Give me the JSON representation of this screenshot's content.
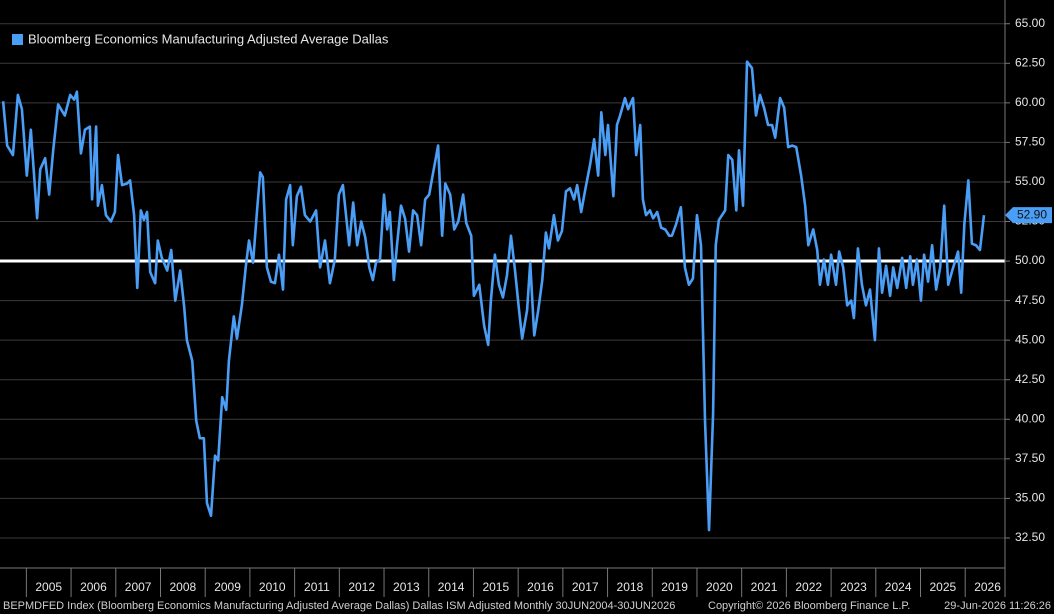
{
  "chart_data": {
    "type": "line",
    "legend": "top-left",
    "reference_line": 50,
    "footer": {
      "source": "BEPMDFED Index (Bloomberg Economics Manufacturing Adjusted Average Dallas) Dallas ISM Adjusted Monthly 30JUN2004-30JUN2026",
      "copyright": "Copyright© 2026 Bloomberg Finance L.P.",
      "timestamp": "29-Jun-2026 11:26:26"
    },
    "last_value": {
      "value": 52.9,
      "label": "52.90"
    },
    "xlim": [
      2004.41,
      2026.89
    ],
    "xticks": [
      2005,
      2006,
      2007,
      2008,
      2009,
      2010,
      2011,
      2012,
      2013,
      2014,
      2015,
      2016,
      2017,
      2018,
      2019,
      2020,
      2021,
      2022,
      2023,
      2024,
      2025,
      2026
    ],
    "ylim": [
      30.6,
      66.5
    ],
    "yticks": [
      {
        "value": 32.5,
        "label": "32.50"
      },
      {
        "value": 35,
        "label": "35.00"
      },
      {
        "value": 37.5,
        "label": "37.50"
      },
      {
        "value": 40,
        "label": "40.00"
      },
      {
        "value": 42.5,
        "label": "42.50"
      },
      {
        "value": 45,
        "label": "45.00"
      },
      {
        "value": 47.5,
        "label": "47.50"
      },
      {
        "value": 50,
        "label": "50.00"
      },
      {
        "value": 52.5,
        "label": "52.50"
      },
      {
        "value": 55,
        "label": "55.00"
      },
      {
        "value": 57.5,
        "label": "57.50"
      },
      {
        "value": 60,
        "label": "60.00"
      },
      {
        "value": 62.5,
        "label": "62.50"
      },
      {
        "value": 65,
        "label": "65.00"
      }
    ],
    "grid": true,
    "x": [
      2004.48,
      2004.57,
      2004.7,
      2004.81,
      2004.9,
      2005.01,
      2005.1,
      2005.24,
      2005.31,
      2005.42,
      2005.51,
      2005.6,
      2005.71,
      2005.86,
      2005.98,
      2006.07,
      2006.13,
      2006.22,
      2006.31,
      2006.42,
      2006.47,
      2006.56,
      2006.6,
      2006.69,
      2006.78,
      2006.89,
      2006.98,
      2007.05,
      2007.14,
      2007.25,
      2007.32,
      2007.41,
      2007.48,
      2007.56,
      2007.63,
      2007.7,
      2007.77,
      2007.88,
      2007.94,
      2008.03,
      2008.15,
      2008.24,
      2008.33,
      2008.44,
      2008.53,
      2008.59,
      2008.71,
      2008.8,
      2008.88,
      2008.97,
      2009.04,
      2009.13,
      2009.22,
      2009.29,
      2009.38,
      2009.47,
      2009.53,
      2009.64,
      2009.71,
      2009.82,
      2009.91,
      2009.98,
      2010.07,
      2010.16,
      2010.23,
      2010.29,
      2010.38,
      2010.47,
      2010.56,
      2010.65,
      2010.74,
      2010.81,
      2010.9,
      2010.96,
      2011.05,
      2011.14,
      2011.23,
      2011.35,
      2011.48,
      2011.57,
      2011.68,
      2011.79,
      2011.9,
      2011.99,
      2012.08,
      2012.22,
      2012.31,
      2012.4,
      2012.49,
      2012.58,
      2012.67,
      2012.75,
      2012.82,
      2012.91,
      2013.0,
      2013.07,
      2013.13,
      2013.22,
      2013.29,
      2013.38,
      2013.47,
      2013.56,
      2013.65,
      2013.74,
      2013.83,
      2013.92,
      2014.01,
      2014.08,
      2014.21,
      2014.3,
      2014.37,
      2014.48,
      2014.57,
      2014.66,
      2014.77,
      2014.84,
      2014.95,
      2015.01,
      2015.13,
      2015.24,
      2015.33,
      2015.39,
      2015.48,
      2015.57,
      2015.66,
      2015.75,
      2015.84,
      2015.93,
      2016.02,
      2016.09,
      2016.2,
      2016.27,
      2016.36,
      2016.45,
      2016.54,
      2016.62,
      2016.69,
      2016.8,
      2016.89,
      2016.98,
      2017.07,
      2017.16,
      2017.25,
      2017.32,
      2017.41,
      2017.5,
      2017.61,
      2017.7,
      2017.79,
      2017.86,
      2017.95,
      2018.01,
      2018.13,
      2018.21,
      2018.28,
      2018.39,
      2018.46,
      2018.57,
      2018.64,
      2018.73,
      2018.79,
      2018.86,
      2018.95,
      2019.02,
      2019.11,
      2019.2,
      2019.29,
      2019.38,
      2019.44,
      2019.53,
      2019.64,
      2019.73,
      2019.82,
      2019.91,
      2020.0,
      2020.09,
      2020.18,
      2020.27,
      2020.36,
      2020.42,
      2020.49,
      2020.63,
      2020.7,
      2020.79,
      2020.88,
      2020.94,
      2021.03,
      2021.12,
      2021.23,
      2021.32,
      2021.41,
      2021.5,
      2021.59,
      2021.68,
      2021.75,
      2021.86,
      2021.95,
      2022.04,
      2022.13,
      2022.22,
      2022.33,
      2022.42,
      2022.49,
      2022.6,
      2022.69,
      2022.75,
      2022.84,
      2022.93,
      2023.0,
      2023.11,
      2023.18,
      2023.27,
      2023.36,
      2023.45,
      2023.51,
      2023.6,
      2023.69,
      2023.78,
      2023.87,
      2023.98,
      2024.07,
      2024.14,
      2024.23,
      2024.32,
      2024.39,
      2024.48,
      2024.59,
      2024.68,
      2024.77,
      2024.83,
      2024.92,
      2025.01,
      2025.08,
      2025.17,
      2025.26,
      2025.35,
      2025.44,
      2025.53,
      2025.62,
      2025.71,
      2025.84,
      2025.91,
      2025.98,
      2026.07,
      2026.15,
      2026.24,
      2026.33,
      2026.42
    ],
    "series": [
      {
        "name": "Bloomberg Economics Manufacturing Adjusted Average Dallas",
        "color": "#4a9ef5",
        "values": [
          60.1,
          57.3,
          56.7,
          60.5,
          59.6,
          55.4,
          58.3,
          52.7,
          55.8,
          56.5,
          54.2,
          57.0,
          59.9,
          59.2,
          60.5,
          60.2,
          60.7,
          56.8,
          58.3,
          58.5,
          53.9,
          58.5,
          53.5,
          54.8,
          52.9,
          52.5,
          53.1,
          56.7,
          54.8,
          54.9,
          55.1,
          52.9,
          48.3,
          53.2,
          52.6,
          53.1,
          49.3,
          48.6,
          51.3,
          50.2,
          49.4,
          50.7,
          47.5,
          49.4,
          47.1,
          45.0,
          43.7,
          39.9,
          38.8,
          38.8,
          34.7,
          33.9,
          37.7,
          37.4,
          41.4,
          40.6,
          43.7,
          46.5,
          45.1,
          47.2,
          49.7,
          51.3,
          49.9,
          53.2,
          55.6,
          55.3,
          49.6,
          48.7,
          48.6,
          50.4,
          48.2,
          53.9,
          54.8,
          51.0,
          54.1,
          54.7,
          52.9,
          52.5,
          53.2,
          49.6,
          51.3,
          48.6,
          50.1,
          54.2,
          54.8,
          51.0,
          53.7,
          51.0,
          52.5,
          51.5,
          49.6,
          48.8,
          49.9,
          50.1,
          54.2,
          52.0,
          53.1,
          48.8,
          51.0,
          53.5,
          52.7,
          50.6,
          53.2,
          52.9,
          51.0,
          53.9,
          54.2,
          55.3,
          57.3,
          51.6,
          54.9,
          54.2,
          52.0,
          52.5,
          54.2,
          52.4,
          51.6,
          47.8,
          48.5,
          45.9,
          44.7,
          47.5,
          50.4,
          48.5,
          47.7,
          49.1,
          51.6,
          49.4,
          46.9,
          45.1,
          46.9,
          49.9,
          45.3,
          46.9,
          48.8,
          51.8,
          50.8,
          52.9,
          51.3,
          51.9,
          54.4,
          54.6,
          53.9,
          54.8,
          53.1,
          54.5,
          56.1,
          57.7,
          55.4,
          59.4,
          56.7,
          58.6,
          54.1,
          58.6,
          59.2,
          60.3,
          59.6,
          60.3,
          56.7,
          58.6,
          53.9,
          52.9,
          53.2,
          52.7,
          53.1,
          52.1,
          52.0,
          51.6,
          51.6,
          52.3,
          53.4,
          49.6,
          48.5,
          48.9,
          52.9,
          51.0,
          39.9,
          33.0,
          40.3,
          51.0,
          52.6,
          53.2,
          56.7,
          56.4,
          53.2,
          57.0,
          53.5,
          62.6,
          62.2,
          59.2,
          60.5,
          59.7,
          58.6,
          58.6,
          57.8,
          60.3,
          59.7,
          57.2,
          57.3,
          57.2,
          55.4,
          53.5,
          51.0,
          52.0,
          50.7,
          48.5,
          50.1,
          48.5,
          50.4,
          48.5,
          50.6,
          49.6,
          47.2,
          47.5,
          46.4,
          50.8,
          48.5,
          47.2,
          48.2,
          45.0,
          50.8,
          48.0,
          49.7,
          47.8,
          49.6,
          48.3,
          50.2,
          48.3,
          50.3,
          48.5,
          50.1,
          47.5,
          50.4,
          48.7,
          51.0,
          48.2,
          49.6,
          53.5,
          48.5,
          49.4,
          50.6,
          48.0,
          52.3,
          55.1,
          51.1,
          51.0,
          50.7,
          52.9
        ]
      }
    ]
  }
}
